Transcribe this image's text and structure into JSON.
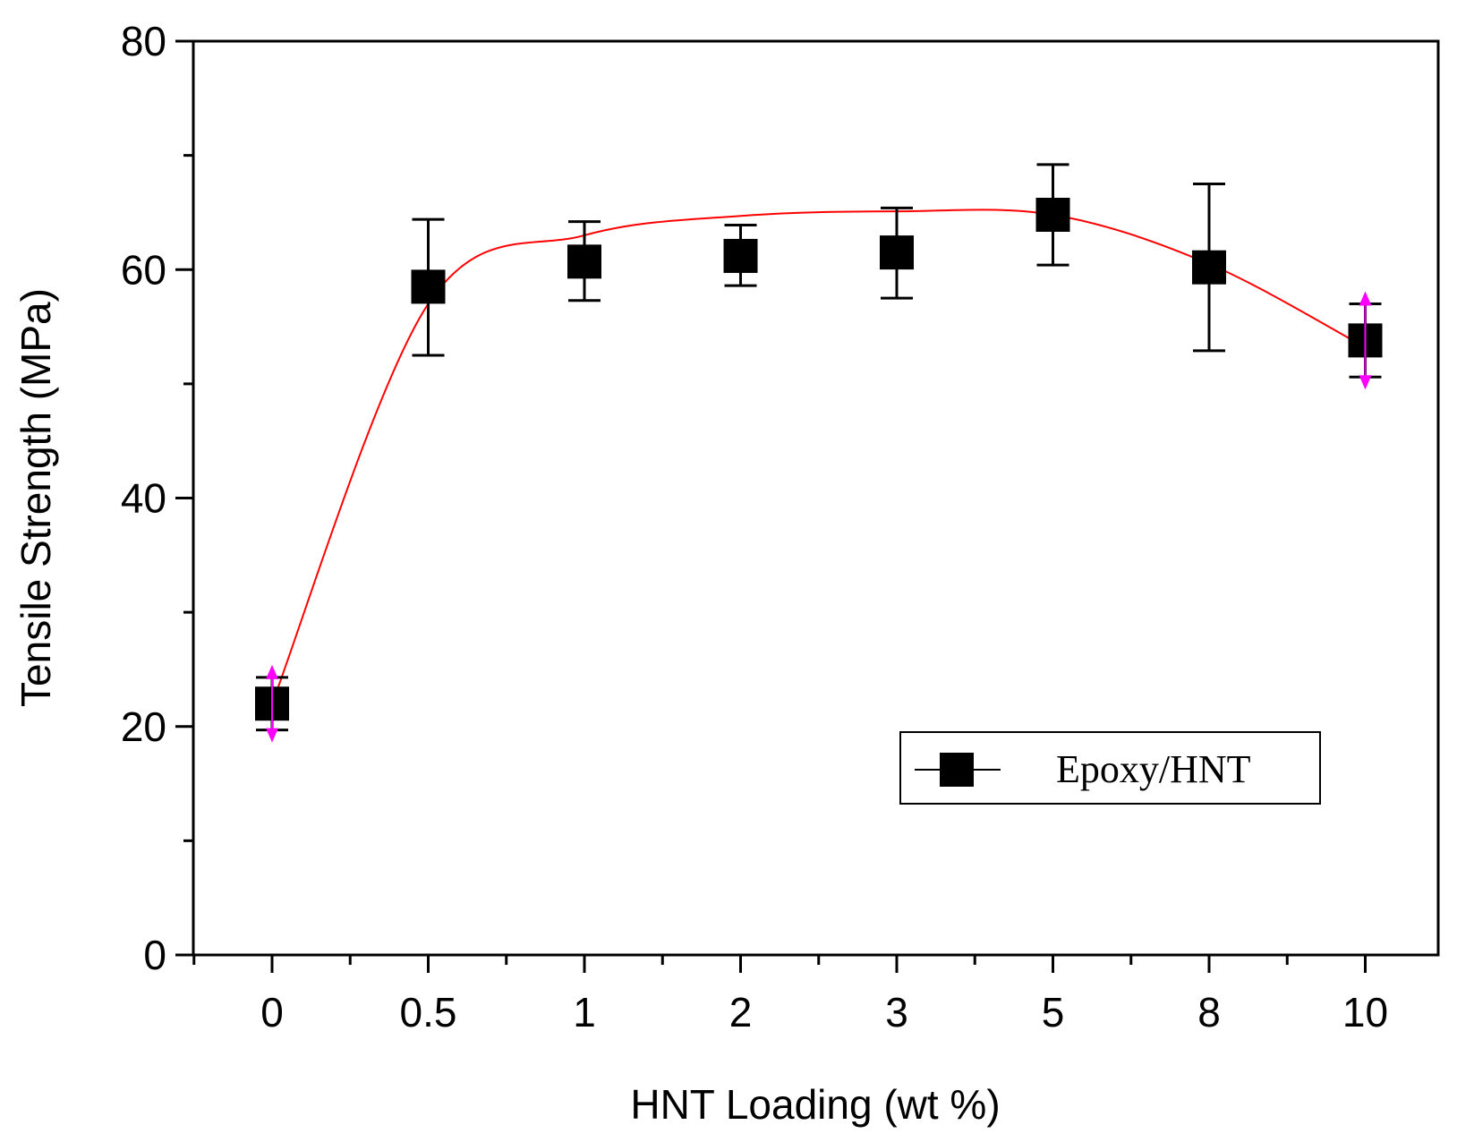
{
  "chart_data": {
    "type": "scatter",
    "title": "",
    "xlabel": "HNT Loading (wt %)",
    "ylabel": "Tensile Strength (MPa)",
    "categories": [
      "0",
      "0.5",
      "1",
      "2",
      "3",
      "5",
      "8",
      "10"
    ],
    "ylim": [
      0,
      80
    ],
    "yticks": [
      "0",
      "20",
      "40",
      "60",
      "80"
    ],
    "series": [
      {
        "name": "Epoxy/HNT",
        "values": [
          22.0,
          58.5,
          60.7,
          61.2,
          61.5,
          64.8,
          60.2,
          53.8
        ],
        "error_low": [
          19.7,
          52.5,
          57.3,
          58.6,
          57.5,
          60.4,
          52.9,
          50.6
        ],
        "error_high": [
          24.3,
          64.4,
          64.2,
          63.9,
          65.4,
          69.2,
          67.5,
          57.0
        ],
        "marker": "square",
        "marker_color": "#000000"
      }
    ],
    "fit_curve": {
      "color": "#ff0000",
      "values": [
        22.0,
        57.0,
        63.0,
        64.7,
        65.1,
        64.8,
        60.5,
        53.2
      ]
    },
    "highlight_arrows": {
      "color": "#ff00ff",
      "categories": [
        "0",
        "10"
      ]
    },
    "legend": {
      "position": "bottom-right",
      "label": "Epoxy/HNT"
    }
  }
}
